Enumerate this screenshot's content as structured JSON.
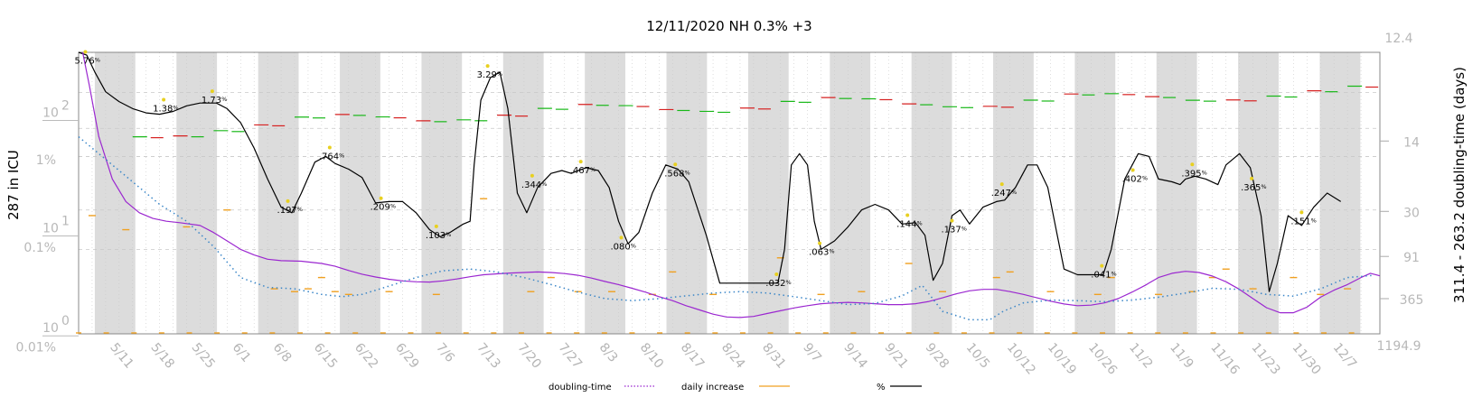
{
  "chart_data": {
    "type": "line",
    "title": "12/11/2020 NH 0.3% +3",
    "ylabel_left": "287 in ICU",
    "ylabel_right": "311.4 - 263.2 doubling-time (days)",
    "left_axis": {
      "scale": "log",
      "ticks": [
        {
          "label": "10",
          "sup": "2",
          "value": 100
        },
        {
          "label": "10",
          "sup": "1",
          "value": 10
        },
        {
          "label": "10",
          "sup": "0",
          "value": 1
        }
      ],
      "percent_ticks": [
        "1%",
        "0.1%",
        "0.01%"
      ]
    },
    "right_axis": {
      "top_label": "12.4",
      "bottom_label": "1194.9",
      "ticks": [
        "14",
        "30",
        "91",
        "365"
      ]
    },
    "x_ticks": [
      "5/11",
      "5/18",
      "5/25",
      "6/1",
      "6/8",
      "6/15",
      "6/22",
      "6/29",
      "7/6",
      "7/13",
      "7/20",
      "7/27",
      "8/3",
      "8/10",
      "8/17",
      "8/24",
      "8/31",
      "9/7",
      "9/14",
      "9/21",
      "9/28",
      "10/5",
      "10/12",
      "10/19",
      "10/26",
      "11/2",
      "11/9",
      "11/16",
      "11/23",
      "11/30",
      "12/7"
    ],
    "point_labels": [
      {
        "text": "5.76",
        "x": 0.5,
        "y": 0.96
      },
      {
        "text": "1.38",
        "x": 6.3,
        "y": 0.79
      },
      {
        "text": "1.73",
        "x": 9.9,
        "y": 0.82
      },
      {
        "text": ".764",
        "x": 18.6,
        "y": 0.62
      },
      {
        "text": ".197",
        "x": 15.5,
        "y": 0.43
      },
      {
        "text": ".209",
        "x": 22.4,
        "y": 0.44
      },
      {
        "text": ".103",
        "x": 26.5,
        "y": 0.34
      },
      {
        "text": "3.29",
        "x": 30.3,
        "y": 0.91
      },
      {
        "text": ".344",
        "x": 33.6,
        "y": 0.52
      },
      {
        "text": ".467",
        "x": 37.2,
        "y": 0.57
      },
      {
        "text": ".080",
        "x": 40.2,
        "y": 0.3
      },
      {
        "text": ".568",
        "x": 44.2,
        "y": 0.56
      },
      {
        "text": ".032",
        "x": 51.7,
        "y": 0.17
      },
      {
        "text": ".063",
        "x": 54.9,
        "y": 0.28
      },
      {
        "text": ".144",
        "x": 61.4,
        "y": 0.38
      },
      {
        "text": ".137",
        "x": 64.7,
        "y": 0.36
      },
      {
        "text": ".247",
        "x": 68.4,
        "y": 0.49
      },
      {
        "text": ".041",
        "x": 75.8,
        "y": 0.2
      },
      {
        "text": ".402",
        "x": 78.1,
        "y": 0.54
      },
      {
        "text": ".395",
        "x": 82.5,
        "y": 0.56
      },
      {
        "text": ".365",
        "x": 86.9,
        "y": 0.51
      },
      {
        "text": ".151",
        "x": 90.6,
        "y": 0.39
      }
    ],
    "series": [
      {
        "name": "%",
        "color": "#000000",
        "points": [
          [
            0,
            1.0
          ],
          [
            0.6,
            0.99
          ],
          [
            1.2,
            0.93
          ],
          [
            2,
            0.86
          ],
          [
            3,
            0.825
          ],
          [
            4,
            0.8
          ],
          [
            5,
            0.785
          ],
          [
            6,
            0.78
          ],
          [
            7,
            0.79
          ],
          [
            8,
            0.81
          ],
          [
            9,
            0.82
          ],
          [
            10.2,
            0.82
          ],
          [
            11,
            0.8
          ],
          [
            12,
            0.75
          ],
          [
            13,
            0.66
          ],
          [
            14,
            0.55
          ],
          [
            15,
            0.45
          ],
          [
            15.8,
            0.43
          ],
          [
            16.5,
            0.5
          ],
          [
            17.5,
            0.61
          ],
          [
            18.3,
            0.63
          ],
          [
            19,
            0.605
          ],
          [
            20,
            0.585
          ],
          [
            21,
            0.555
          ],
          [
            22,
            0.465
          ],
          [
            23,
            0.47
          ],
          [
            24,
            0.47
          ],
          [
            25,
            0.43
          ],
          [
            26,
            0.37
          ],
          [
            26.8,
            0.345
          ],
          [
            27.5,
            0.36
          ],
          [
            28.5,
            0.39
          ],
          [
            29,
            0.4
          ],
          [
            29.3,
            0.6
          ],
          [
            29.8,
            0.83
          ],
          [
            30.5,
            0.91
          ],
          [
            31.2,
            0.93
          ],
          [
            31.8,
            0.8
          ],
          [
            32.5,
            0.5
          ],
          [
            33.2,
            0.43
          ],
          [
            34,
            0.52
          ],
          [
            35,
            0.57
          ],
          [
            35.8,
            0.58
          ],
          [
            36.5,
            0.57
          ],
          [
            37,
            0.58
          ],
          [
            37.6,
            0.59
          ],
          [
            38.5,
            0.58
          ],
          [
            39.3,
            0.52
          ],
          [
            40,
            0.4
          ],
          [
            40.7,
            0.32
          ],
          [
            41.5,
            0.36
          ],
          [
            42.5,
            0.5
          ],
          [
            43.5,
            0.6
          ],
          [
            44.4,
            0.585
          ],
          [
            45.2,
            0.54
          ],
          [
            46.5,
            0.35
          ],
          [
            47.5,
            0.18
          ],
          [
            48.5,
            0.18
          ],
          [
            51.8,
            0.18
          ],
          [
            52.3,
            0.3
          ],
          [
            52.8,
            0.6
          ],
          [
            53.4,
            0.64
          ],
          [
            54,
            0.6
          ],
          [
            54.5,
            0.4
          ],
          [
            55,
            0.3
          ],
          [
            56,
            0.33
          ],
          [
            57,
            0.38
          ],
          [
            58,
            0.44
          ],
          [
            59,
            0.46
          ],
          [
            60,
            0.44
          ],
          [
            61,
            0.39
          ],
          [
            62,
            0.395
          ],
          [
            62.7,
            0.35
          ],
          [
            63.3,
            0.19
          ],
          [
            64,
            0.25
          ],
          [
            64.7,
            0.42
          ],
          [
            65.3,
            0.44
          ],
          [
            66,
            0.39
          ],
          [
            67,
            0.45
          ],
          [
            68,
            0.47
          ],
          [
            68.6,
            0.475
          ],
          [
            69.4,
            0.52
          ],
          [
            70.3,
            0.6
          ],
          [
            71,
            0.6
          ],
          [
            71.8,
            0.52
          ],
          [
            72.5,
            0.35
          ],
          [
            73,
            0.23
          ],
          [
            74,
            0.21
          ],
          [
            75.9,
            0.21
          ],
          [
            76.5,
            0.3
          ],
          [
            77.5,
            0.55
          ],
          [
            78.5,
            0.64
          ],
          [
            79.3,
            0.63
          ],
          [
            80,
            0.55
          ],
          [
            81,
            0.54
          ],
          [
            81.6,
            0.53
          ],
          [
            82,
            0.55
          ],
          [
            82.7,
            0.56
          ],
          [
            83.5,
            0.55
          ],
          [
            84.4,
            0.53
          ],
          [
            85,
            0.6
          ],
          [
            86,
            0.64
          ],
          [
            86.8,
            0.59
          ],
          [
            87.6,
            0.42
          ],
          [
            88.2,
            0.15
          ],
          [
            88.8,
            0.25
          ],
          [
            89.6,
            0.42
          ],
          [
            90.6,
            0.385
          ],
          [
            91.5,
            0.45
          ],
          [
            92.5,
            0.5
          ],
          [
            93.5,
            0.47
          ]
        ]
      },
      {
        "name": "",
        "color": "#9b27d0",
        "points": [
          [
            0.3,
            1.0
          ],
          [
            0.8,
            0.88
          ],
          [
            1.5,
            0.7
          ],
          [
            2.5,
            0.55
          ],
          [
            3.5,
            0.47
          ],
          [
            4.5,
            0.43
          ],
          [
            5.5,
            0.41
          ],
          [
            6.5,
            0.4
          ],
          [
            7.5,
            0.395
          ],
          [
            9,
            0.385
          ],
          [
            10,
            0.36
          ],
          [
            11,
            0.33
          ],
          [
            12,
            0.3
          ],
          [
            13,
            0.28
          ],
          [
            14,
            0.265
          ],
          [
            15,
            0.26
          ],
          [
            16.5,
            0.258
          ],
          [
            18,
            0.25
          ],
          [
            19,
            0.24
          ],
          [
            20,
            0.225
          ],
          [
            21,
            0.212
          ],
          [
            22,
            0.202
          ],
          [
            23,
            0.194
          ],
          [
            24,
            0.188
          ],
          [
            25,
            0.185
          ],
          [
            26,
            0.184
          ],
          [
            27,
            0.188
          ],
          [
            28,
            0.195
          ],
          [
            29,
            0.203
          ],
          [
            30,
            0.21
          ],
          [
            31,
            0.213
          ],
          [
            32,
            0.216
          ],
          [
            33,
            0.218
          ],
          [
            34,
            0.22
          ],
          [
            35,
            0.218
          ],
          [
            36,
            0.214
          ],
          [
            37,
            0.208
          ],
          [
            38,
            0.198
          ],
          [
            39,
            0.186
          ],
          [
            40,
            0.175
          ],
          [
            41,
            0.162
          ],
          [
            42,
            0.148
          ],
          [
            43,
            0.132
          ],
          [
            44,
            0.118
          ],
          [
            45,
            0.1
          ],
          [
            46,
            0.085
          ],
          [
            47,
            0.07
          ],
          [
            48,
            0.06
          ],
          [
            49,
            0.058
          ],
          [
            50,
            0.062
          ],
          [
            51,
            0.072
          ],
          [
            52,
            0.082
          ],
          [
            53,
            0.092
          ],
          [
            54,
            0.1
          ],
          [
            55,
            0.107
          ],
          [
            56,
            0.11
          ],
          [
            57,
            0.112
          ],
          [
            58,
            0.11
          ],
          [
            59,
            0.107
          ],
          [
            60,
            0.104
          ],
          [
            61,
            0.104
          ],
          [
            62,
            0.107
          ],
          [
            63,
            0.115
          ],
          [
            64,
            0.128
          ],
          [
            65,
            0.142
          ],
          [
            66,
            0.153
          ],
          [
            67,
            0.158
          ],
          [
            68,
            0.158
          ],
          [
            69,
            0.15
          ],
          [
            70,
            0.14
          ],
          [
            71,
            0.128
          ],
          [
            72,
            0.116
          ],
          [
            73,
            0.106
          ],
          [
            74,
            0.1
          ],
          [
            75,
            0.102
          ],
          [
            76,
            0.11
          ],
          [
            77,
            0.125
          ],
          [
            78,
            0.147
          ],
          [
            79,
            0.172
          ],
          [
            80,
            0.2
          ],
          [
            81,
            0.215
          ],
          [
            82,
            0.222
          ],
          [
            83,
            0.218
          ],
          [
            84,
            0.205
          ],
          [
            85,
            0.185
          ],
          [
            86,
            0.158
          ],
          [
            87,
            0.125
          ],
          [
            88,
            0.093
          ],
          [
            89,
            0.075
          ],
          [
            90,
            0.075
          ],
          [
            91,
            0.095
          ],
          [
            92,
            0.13
          ],
          [
            93,
            0.155
          ],
          [
            94,
            0.175
          ],
          [
            95,
            0.2
          ],
          [
            95.7,
            0.215
          ],
          [
            96.4,
            0.206
          ]
        ]
      },
      {
        "name": "doubling-time",
        "color": "#3a86c8",
        "points": [
          [
            0,
            0.7
          ],
          [
            2,
            0.62
          ],
          [
            4,
            0.54
          ],
          [
            6,
            0.46
          ],
          [
            8,
            0.4
          ],
          [
            10,
            0.31
          ],
          [
            12,
            0.2
          ],
          [
            14,
            0.165
          ],
          [
            16,
            0.16
          ],
          [
            18,
            0.14
          ],
          [
            19.5,
            0.132
          ],
          [
            21,
            0.14
          ],
          [
            23,
            0.17
          ],
          [
            25,
            0.2
          ],
          [
            27,
            0.224
          ],
          [
            29,
            0.23
          ],
          [
            31,
            0.22
          ],
          [
            33,
            0.2
          ],
          [
            35,
            0.175
          ],
          [
            37,
            0.148
          ],
          [
            39,
            0.125
          ],
          [
            41,
            0.118
          ],
          [
            43,
            0.125
          ],
          [
            45,
            0.135
          ],
          [
            47,
            0.145
          ],
          [
            49,
            0.15
          ],
          [
            51,
            0.145
          ],
          [
            53,
            0.132
          ],
          [
            55,
            0.118
          ],
          [
            57,
            0.104
          ],
          [
            59,
            0.108
          ],
          [
            61,
            0.135
          ],
          [
            62.5,
            0.172
          ],
          [
            64,
            0.08
          ],
          [
            66,
            0.05
          ],
          [
            67.5,
            0.05
          ],
          [
            68.5,
            0.08
          ],
          [
            70,
            0.11
          ],
          [
            72,
            0.12
          ],
          [
            74,
            0.118
          ],
          [
            76,
            0.114
          ],
          [
            78,
            0.12
          ],
          [
            80,
            0.13
          ],
          [
            82,
            0.145
          ],
          [
            84,
            0.162
          ],
          [
            86,
            0.158
          ],
          [
            88,
            0.14
          ],
          [
            90,
            0.134
          ],
          [
            92,
            0.16
          ],
          [
            94,
            0.2
          ],
          [
            96,
            0.208
          ]
        ]
      }
    ],
    "legend": [
      {
        "label": "doubling-time",
        "style": "dotted",
        "color": "#9b27d0"
      },
      {
        "label": "daily increase",
        "style": "solid",
        "color": "#f0a020"
      },
      {
        "label": "%",
        "style": "solid",
        "color": "#000000"
      }
    ],
    "pct_unit": "%",
    "shaded_week_bands": true,
    "grid": true
  }
}
